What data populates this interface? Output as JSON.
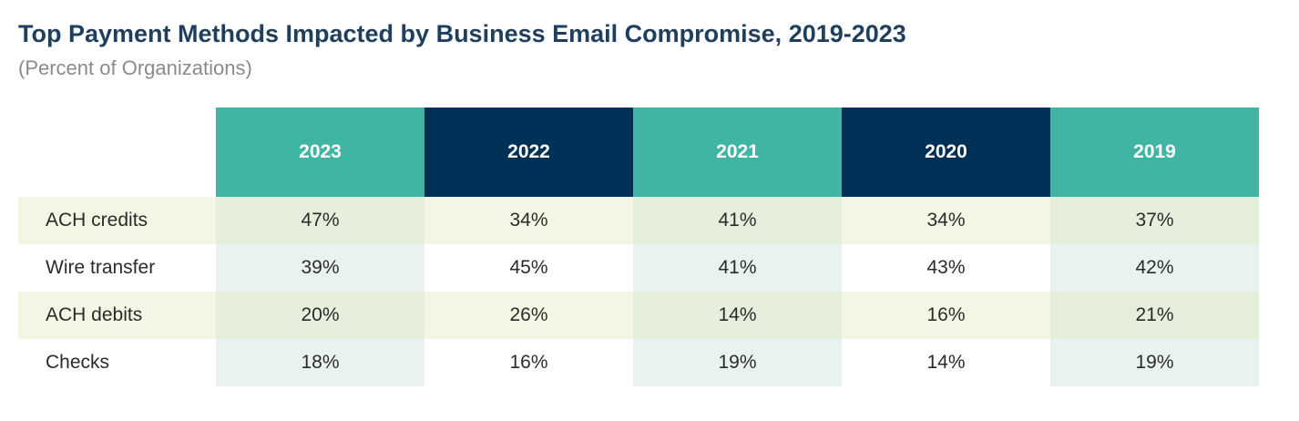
{
  "chart_data": {
    "type": "table",
    "title": "Top Payment Methods Impacted by Business Email Compromise, 2019-2023",
    "subtitle": "(Percent of Organizations)",
    "columns": [
      "2023",
      "2022",
      "2021",
      "2020",
      "2019"
    ],
    "column_colors": [
      "#40b5a3",
      "#003055",
      "#40b5a3",
      "#003055",
      "#40b5a3"
    ],
    "rows": [
      {
        "label": "ACH credits",
        "values": [
          "47%",
          "34%",
          "41%",
          "34%",
          "37%"
        ]
      },
      {
        "label": "Wire transfer",
        "values": [
          "39%",
          "45%",
          "41%",
          "43%",
          "42%"
        ]
      },
      {
        "label": "ACH debits",
        "values": [
          "20%",
          "26%",
          "14%",
          "16%",
          "21%"
        ]
      },
      {
        "label": "Checks",
        "values": [
          "18%",
          "16%",
          "19%",
          "14%",
          "19%"
        ]
      }
    ]
  }
}
